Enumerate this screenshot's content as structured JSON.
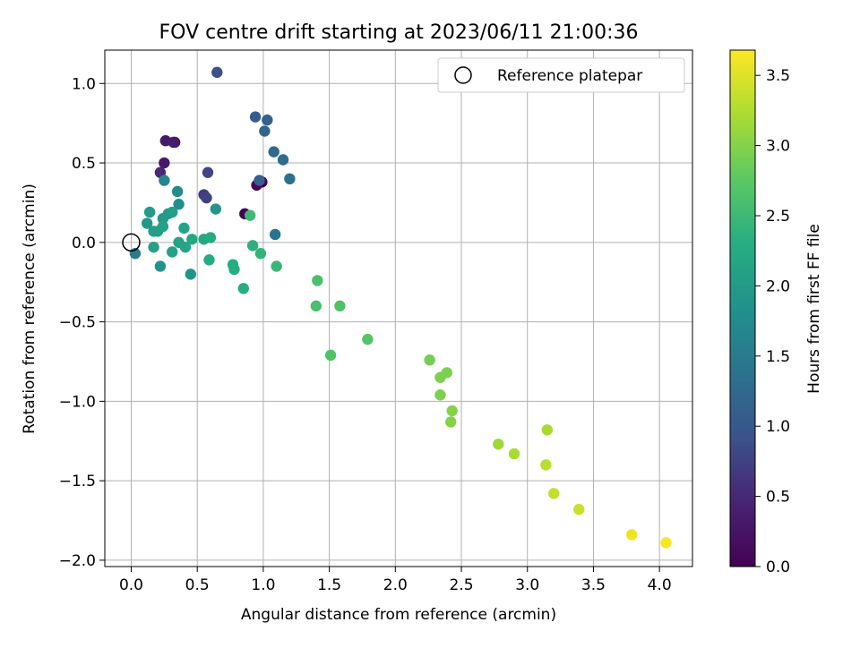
{
  "chart_data": {
    "type": "scatter",
    "title": "FOV centre drift starting at 2023/06/11 21:00:36",
    "xlabel": "Angular distance from reference (arcmin)",
    "ylabel": "Rotation from reference (arcmin)",
    "xlim": [
      -0.2,
      4.25
    ],
    "ylim": [
      -2.04,
      1.21
    ],
    "xticks": [
      0.0,
      0.5,
      1.0,
      1.5,
      2.0,
      2.5,
      3.0,
      3.5,
      4.0
    ],
    "xtick_labels": [
      "0.0",
      "0.5",
      "1.0",
      "1.5",
      "2.0",
      "2.5",
      "3.0",
      "3.5",
      "4.0"
    ],
    "yticks": [
      1.0,
      0.5,
      0.0,
      -0.5,
      -1.0,
      -1.5,
      -2.0
    ],
    "ytick_labels": [
      "1.0",
      "0.5",
      "0.0",
      "−0.5",
      "−1.0",
      "−1.5",
      "−2.0"
    ],
    "grid": true,
    "legend": {
      "placement": "top-right",
      "entries": [
        "Reference platepar"
      ]
    },
    "reference_point": {
      "x": 0.0,
      "y": 0.0,
      "label": "Reference platepar"
    },
    "colorbar": {
      "label": "Hours from first FF file",
      "colormap": "viridis",
      "range": [
        0.0,
        3.68
      ],
      "ticks": [
        0.0,
        0.5,
        1.0,
        1.5,
        2.0,
        2.5,
        3.0,
        3.5
      ],
      "tick_labels": [
        "0.0",
        "0.5",
        "1.0",
        "1.5",
        "2.0",
        "2.5",
        "3.0",
        "3.5"
      ]
    },
    "points": [
      {
        "x": 0.86,
        "y": 0.18,
        "c": 0.0
      },
      {
        "x": 0.99,
        "y": 0.38,
        "c": 0.02
      },
      {
        "x": 0.95,
        "y": 0.36,
        "c": 0.06
      },
      {
        "x": 0.33,
        "y": 0.63,
        "c": 0.2
      },
      {
        "x": 0.26,
        "y": 0.64,
        "c": 0.3
      },
      {
        "x": 0.25,
        "y": 0.5,
        "c": 0.3
      },
      {
        "x": 0.32,
        "y": 0.63,
        "c": 0.35
      },
      {
        "x": 0.22,
        "y": 0.44,
        "c": 0.5
      },
      {
        "x": 0.55,
        "y": 0.3,
        "c": 0.7
      },
      {
        "x": 0.57,
        "y": 0.28,
        "c": 0.75
      },
      {
        "x": 0.58,
        "y": 0.44,
        "c": 0.8
      },
      {
        "x": 0.65,
        "y": 1.07,
        "c": 0.9
      },
      {
        "x": 0.94,
        "y": 0.79,
        "c": 1.05
      },
      {
        "x": 0.97,
        "y": 0.39,
        "c": 1.1
      },
      {
        "x": 1.03,
        "y": 0.77,
        "c": 1.15
      },
      {
        "x": 1.01,
        "y": 0.7,
        "c": 1.2
      },
      {
        "x": 1.08,
        "y": 0.57,
        "c": 1.25
      },
      {
        "x": 1.15,
        "y": 0.52,
        "c": 1.3
      },
      {
        "x": 1.2,
        "y": 0.4,
        "c": 1.35
      },
      {
        "x": 1.09,
        "y": 0.05,
        "c": 1.4
      },
      {
        "x": 0.03,
        "y": -0.07,
        "c": 1.55
      },
      {
        "x": 0.25,
        "y": 0.39,
        "c": 1.65
      },
      {
        "x": 0.35,
        "y": 0.32,
        "c": 1.75
      },
      {
        "x": 0.36,
        "y": 0.24,
        "c": 1.8
      },
      {
        "x": 0.22,
        "y": -0.15,
        "c": 1.85
      },
      {
        "x": 0.45,
        "y": -0.2,
        "c": 1.9
      },
      {
        "x": 0.64,
        "y": 0.21,
        "c": 1.9
      },
      {
        "x": 0.12,
        "y": 0.12,
        "c": 1.95
      },
      {
        "x": 0.14,
        "y": 0.19,
        "c": 2.0
      },
      {
        "x": 0.24,
        "y": 0.15,
        "c": 2.0
      },
      {
        "x": 0.28,
        "y": 0.18,
        "c": 2.0
      },
      {
        "x": 0.31,
        "y": 0.19,
        "c": 2.05
      },
      {
        "x": 0.17,
        "y": 0.07,
        "c": 2.05
      },
      {
        "x": 0.2,
        "y": 0.07,
        "c": 2.05
      },
      {
        "x": 0.24,
        "y": 0.1,
        "c": 2.1
      },
      {
        "x": 0.17,
        "y": -0.03,
        "c": 2.1
      },
      {
        "x": 0.31,
        "y": -0.06,
        "c": 2.1
      },
      {
        "x": 0.36,
        "y": 0.0,
        "c": 2.15
      },
      {
        "x": 0.41,
        "y": -0.03,
        "c": 2.15
      },
      {
        "x": 0.4,
        "y": 0.09,
        "c": 2.15
      },
      {
        "x": 0.46,
        "y": 0.02,
        "c": 2.2
      },
      {
        "x": 0.55,
        "y": 0.02,
        "c": 2.2
      },
      {
        "x": 0.6,
        "y": 0.03,
        "c": 2.25
      },
      {
        "x": 0.59,
        "y": -0.11,
        "c": 2.25
      },
      {
        "x": 0.77,
        "y": -0.14,
        "c": 2.3
      },
      {
        "x": 0.78,
        "y": -0.17,
        "c": 2.3
      },
      {
        "x": 0.85,
        "y": -0.29,
        "c": 2.3
      },
      {
        "x": 0.92,
        "y": -0.02,
        "c": 2.35
      },
      {
        "x": 0.98,
        "y": -0.07,
        "c": 2.4
      },
      {
        "x": 1.1,
        "y": -0.15,
        "c": 2.45
      },
      {
        "x": 0.9,
        "y": 0.17,
        "c": 2.5
      },
      {
        "x": 1.41,
        "y": -0.24,
        "c": 2.6
      },
      {
        "x": 1.4,
        "y": -0.4,
        "c": 2.6
      },
      {
        "x": 1.58,
        "y": -0.4,
        "c": 2.65
      },
      {
        "x": 1.51,
        "y": -0.71,
        "c": 2.65
      },
      {
        "x": 1.79,
        "y": -0.61,
        "c": 2.7
      },
      {
        "x": 2.26,
        "y": -0.74,
        "c": 2.9
      },
      {
        "x": 2.34,
        "y": -0.85,
        "c": 2.95
      },
      {
        "x": 2.39,
        "y": -0.82,
        "c": 2.95
      },
      {
        "x": 2.34,
        "y": -0.96,
        "c": 2.95
      },
      {
        "x": 2.43,
        "y": -1.06,
        "c": 3.0
      },
      {
        "x": 2.42,
        "y": -1.13,
        "c": 3.0
      },
      {
        "x": 2.78,
        "y": -1.27,
        "c": 3.15
      },
      {
        "x": 2.9,
        "y": -1.33,
        "c": 3.2
      },
      {
        "x": 3.15,
        "y": -1.18,
        "c": 3.2
      },
      {
        "x": 3.14,
        "y": -1.4,
        "c": 3.3
      },
      {
        "x": 3.2,
        "y": -1.58,
        "c": 3.35
      },
      {
        "x": 3.39,
        "y": -1.68,
        "c": 3.4
      },
      {
        "x": 3.79,
        "y": -1.84,
        "c": 3.6
      },
      {
        "x": 4.05,
        "y": -1.89,
        "c": 3.65
      }
    ]
  }
}
